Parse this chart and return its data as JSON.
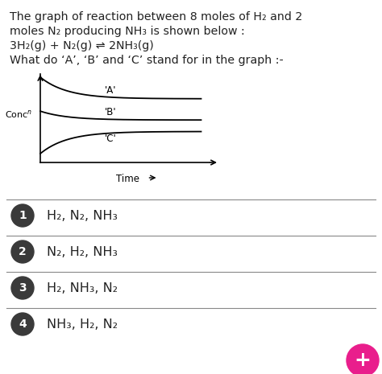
{
  "background_color": "#ffffff",
  "title_text_line1": "The graph of reaction between 8 moles of H₂ and 2",
  "title_text_line2": "moles N₂ producing NH₃ is shown below :",
  "equation_line": "3H₂(g) + N₂(g) ⇌ 2NH₃(g)",
  "question_line": "What do ‘A’, ‘B’ and ‘C’ stand for in the graph :-",
  "options": [
    {
      "num": "1",
      "text": "H₂, N₂, NH₃"
    },
    {
      "num": "2",
      "text": "N₂, H₂, NH₃"
    },
    {
      "num": "3",
      "text": "H₂, NH₃, N₂"
    },
    {
      "num": "4",
      "text": "NH₃, H₂, N₂"
    }
  ],
  "text_color": "#222222",
  "circle_color": "#3a3a3a",
  "divider_color": "#888888",
  "pink_color": "#e91e8c"
}
